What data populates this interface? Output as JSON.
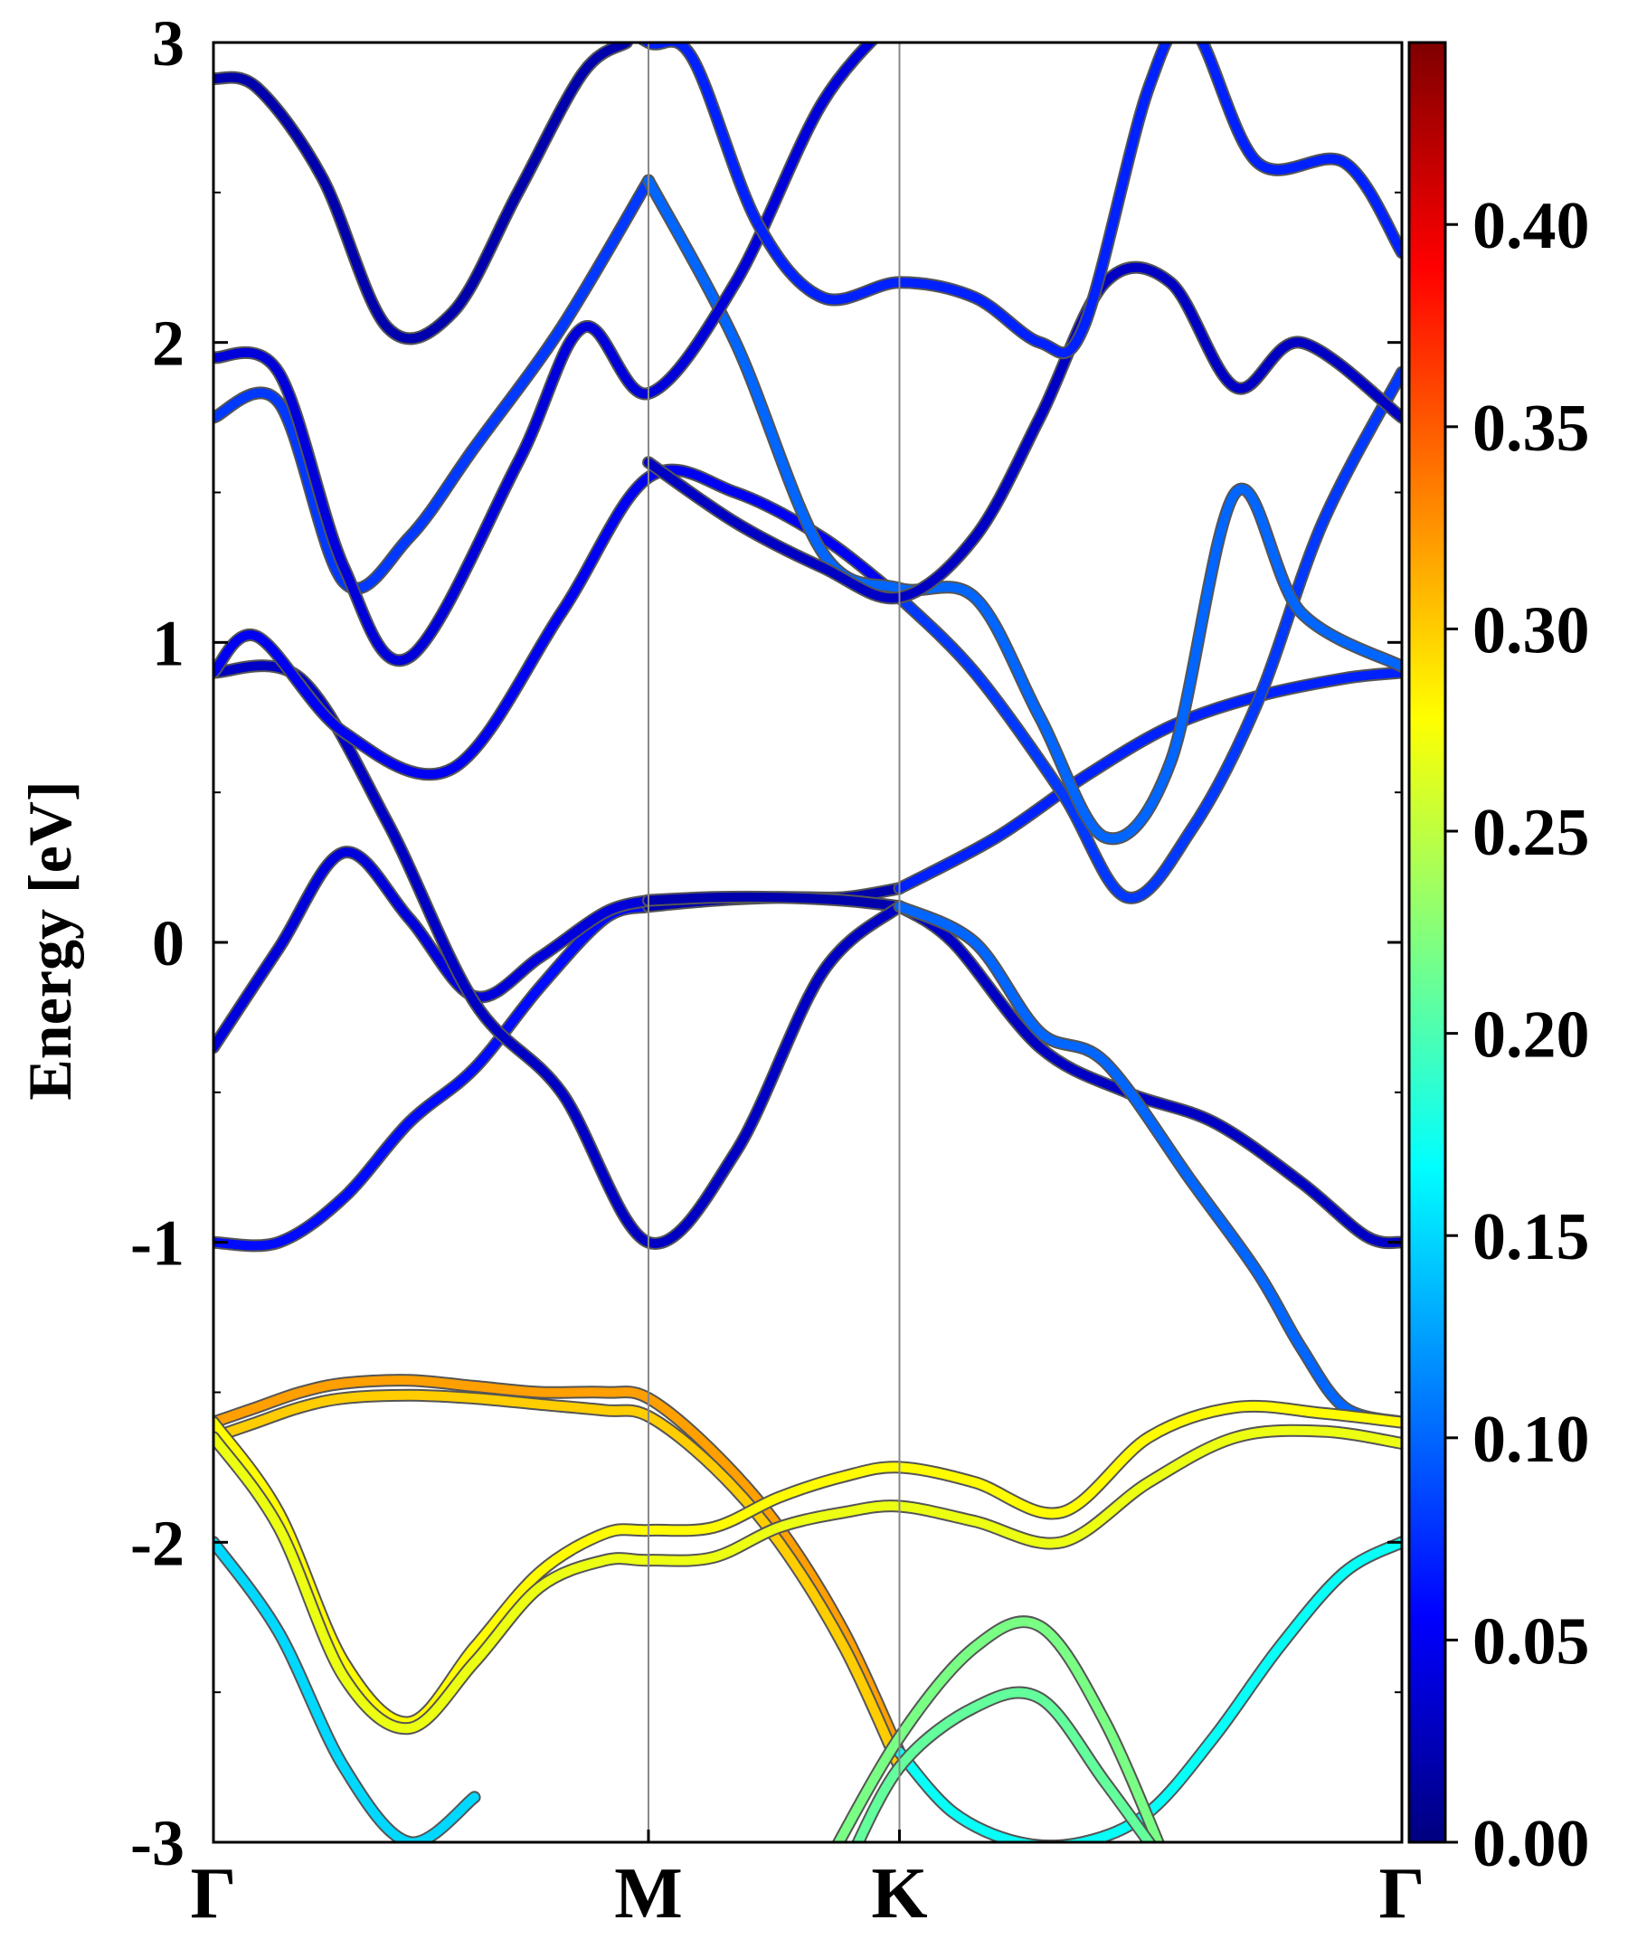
{
  "chart_data": {
    "type": "line",
    "title": "",
    "ylabel": "Energy [eV]",
    "xlabel": "",
    "ylim": [
      -3,
      3
    ],
    "grid": false,
    "legend": "none",
    "x_ticks": [
      "Γ",
      "M",
      "K",
      "Γ"
    ],
    "x_tick_positions": [
      0,
      1,
      1.577,
      2.732
    ],
    "y_ticks": [
      "3",
      "2",
      "1",
      "0",
      "-1",
      "-2",
      "-3"
    ],
    "y_tick_values": [
      3,
      2,
      1,
      0,
      -1,
      -2,
      -3
    ],
    "y_minor_step": 0.5,
    "colorbar": {
      "range": [
        0,
        0.445
      ],
      "ticks": [
        "0.00",
        "0.05",
        "0.10",
        "0.15",
        "0.20",
        "0.25",
        "0.30",
        "0.35",
        "0.40"
      ],
      "tick_values": [
        0.0,
        0.05,
        0.1,
        0.15,
        0.2,
        0.25,
        0.3,
        0.35,
        0.4
      ],
      "colormap": "jet"
    },
    "series": [
      {
        "x": [
          0,
          0.15,
          0.3,
          0.45,
          0.6,
          0.75,
          0.9,
          1.0
        ],
        "y": [
          -1.0,
          -1.0,
          -0.85,
          -0.6,
          -0.42,
          -0.15,
          0.08,
          0.12
        ],
        "c": 0.06
      },
      {
        "x": [
          1.0,
          1.15,
          1.3,
          1.45,
          1.577
        ],
        "y": [
          0.12,
          0.14,
          0.15,
          0.15,
          0.18
        ],
        "c": 0.02
      },
      {
        "x": [
          1.577,
          1.8,
          2.0,
          2.2,
          2.4,
          2.6,
          2.732
        ],
        "y": [
          0.18,
          0.35,
          0.55,
          0.72,
          0.82,
          0.88,
          0.9
        ],
        "c": 0.07
      },
      {
        "x": [
          0,
          0.15,
          0.3,
          0.45,
          0.6,
          0.75,
          0.9,
          1.0
        ],
        "y": [
          -0.35,
          -0.02,
          0.3,
          0.08,
          -0.18,
          -0.05,
          0.1,
          0.14
        ],
        "c": 0.04
      },
      {
        "x": [
          1.0,
          1.15,
          1.3,
          1.45,
          1.577
        ],
        "y": [
          0.14,
          0.15,
          0.15,
          0.14,
          0.12
        ],
        "c": 0.02
      },
      {
        "x": [
          1.577,
          1.7,
          1.9,
          2.1,
          2.3,
          2.5,
          2.65,
          2.732
        ],
        "y": [
          0.12,
          0.0,
          -0.35,
          -0.5,
          -0.6,
          -0.8,
          -0.98,
          -1.0
        ],
        "c": 0.03
      },
      {
        "x": [
          0,
          0.2,
          0.4,
          0.6,
          0.8,
          1.0,
          1.2,
          1.4,
          1.577
        ],
        "y": [
          0.9,
          0.88,
          0.4,
          -0.2,
          -0.5,
          -1.0,
          -0.7,
          -0.1,
          0.12
        ],
        "c": 0.03
      },
      {
        "x": [
          1.577,
          1.75,
          1.9,
          2.05,
          2.25,
          2.4,
          2.5,
          2.6,
          2.732
        ],
        "y": [
          0.12,
          0.0,
          -0.3,
          -0.4,
          -0.8,
          -1.1,
          -1.35,
          -1.55,
          -1.6
        ],
        "c": 0.1
      },
      {
        "x": [
          0,
          0.1,
          0.3,
          0.55,
          0.8,
          1.0,
          1.2,
          1.4,
          1.577
        ],
        "y": [
          0.9,
          1.02,
          0.7,
          0.58,
          1.1,
          1.55,
          1.5,
          1.35,
          1.15
        ],
        "c": 0.05
      },
      {
        "x": [
          1.577,
          1.75,
          1.95,
          2.1,
          2.25,
          2.4,
          2.55,
          2.732
        ],
        "y": [
          1.15,
          0.9,
          0.5,
          0.15,
          0.38,
          0.8,
          1.4,
          1.9
        ],
        "c": 0.08
      },
      {
        "x": [
          0,
          0.15,
          0.3,
          0.45,
          0.6,
          0.8,
          1.0
        ],
        "y": [
          1.75,
          1.8,
          1.2,
          1.35,
          1.65,
          2.05,
          2.54
        ],
        "c": 0.08
      },
      {
        "x": [
          1.0,
          1.2,
          1.4,
          1.577,
          1.75,
          1.9,
          2.05,
          2.2,
          2.35,
          2.5,
          2.732
        ],
        "y": [
          2.54,
          2.0,
          1.3,
          1.18,
          1.15,
          0.75,
          0.35,
          0.6,
          1.5,
          1.1,
          0.92
        ],
        "c": 0.1
      },
      {
        "x": [
          0,
          0.15,
          0.3,
          0.45,
          0.7,
          0.85,
          1.0,
          1.2,
          1.4,
          1.577
        ],
        "y": [
          1.95,
          1.9,
          1.25,
          0.95,
          1.6,
          2.05,
          1.83,
          2.2,
          2.8,
          3.1
        ],
        "c": 0.04
      },
      {
        "x": [
          1.0,
          1.2,
          1.4,
          1.577,
          1.75,
          1.9,
          2.05,
          2.2,
          2.35,
          2.5,
          2.732
        ],
        "y": [
          1.6,
          1.4,
          1.25,
          1.15,
          1.35,
          1.75,
          2.2,
          2.2,
          1.85,
          2.0,
          1.75
        ],
        "c": 0.03
      },
      {
        "x": [
          0.9,
          1.0,
          1.1,
          1.25,
          1.4,
          1.577,
          1.75,
          1.9,
          2.0,
          2.15,
          2.25,
          2.4,
          2.6,
          2.732
        ],
        "y": [
          3.1,
          3.0,
          2.95,
          2.4,
          2.15,
          2.2,
          2.15,
          2.0,
          2.05,
          2.85,
          3.05,
          2.6,
          2.6,
          2.3
        ],
        "c": 0.07
      },
      {
        "x": [
          0,
          0.1,
          0.25,
          0.4,
          0.55,
          0.7,
          0.85,
          0.95
        ],
        "y": [
          2.88,
          2.85,
          2.55,
          2.05,
          2.1,
          2.5,
          2.9,
          3.0
        ],
        "c": 0.02
      },
      {
        "x": [
          0,
          0.1,
          0.2,
          0.3,
          0.45,
          0.6,
          0.75,
          0.9,
          1.0,
          1.15,
          1.3,
          1.45,
          1.577
        ],
        "y": [
          -1.6,
          -1.55,
          -1.5,
          -1.47,
          -1.46,
          -1.48,
          -1.5,
          -1.5,
          -1.52,
          -1.7,
          -1.95,
          -2.3,
          -2.7
        ],
        "c": 0.32
      },
      {
        "x": [
          0,
          0.1,
          0.2,
          0.3,
          0.45,
          0.6,
          0.75,
          0.9,
          1.0,
          1.15,
          1.3,
          1.45,
          1.577
        ],
        "y": [
          -1.65,
          -1.6,
          -1.55,
          -1.52,
          -1.51,
          -1.52,
          -1.54,
          -1.56,
          -1.58,
          -1.75,
          -2.0,
          -2.35,
          -2.75
        ],
        "c": 0.3
      },
      {
        "x": [
          0,
          0.15,
          0.3,
          0.45,
          0.6,
          0.75,
          0.9,
          1.0,
          1.15,
          1.3,
          1.45,
          1.577,
          1.75,
          1.95,
          2.15,
          2.35,
          2.55,
          2.732
        ],
        "y": [
          -1.6,
          -1.9,
          -2.4,
          -2.6,
          -2.35,
          -2.1,
          -1.97,
          -1.96,
          -1.95,
          -1.85,
          -1.78,
          -1.75,
          -1.8,
          -1.9,
          -1.65,
          -1.55,
          -1.57,
          -1.6
        ],
        "c": 0.28
      },
      {
        "x": [
          0,
          0.15,
          0.3,
          0.45,
          0.6,
          0.75,
          0.9,
          1.0,
          1.15,
          1.3,
          1.45,
          1.577,
          1.75,
          1.95,
          2.15,
          2.35,
          2.55,
          2.732
        ],
        "y": [
          -1.65,
          -1.95,
          -2.45,
          -2.62,
          -2.4,
          -2.15,
          -2.06,
          -2.06,
          -2.05,
          -1.95,
          -1.9,
          -1.88,
          -1.93,
          -2.0,
          -1.8,
          -1.65,
          -1.63,
          -1.67
        ],
        "c": 0.27
      },
      {
        "x": [
          0,
          0.15,
          0.3,
          0.45,
          0.6
        ],
        "y": [
          -2.0,
          -2.3,
          -2.75,
          -3.0,
          -2.85
        ],
        "c": 0.15
      },
      {
        "x": [
          1.577,
          1.7,
          1.85,
          2.0,
          2.15,
          2.3,
          2.45,
          2.6,
          2.732
        ],
        "y": [
          -2.7,
          -2.9,
          -3.0,
          -3.0,
          -2.9,
          -2.65,
          -2.35,
          -2.1,
          -2.0
        ],
        "c": 0.17
      },
      {
        "x": [
          1.4,
          1.577,
          1.75,
          1.9,
          2.05,
          2.2
        ],
        "y": [
          -3.1,
          -2.65,
          -2.35,
          -2.28,
          -2.6,
          -3.1
        ],
        "c": 0.22
      },
      {
        "x": [
          1.45,
          1.577,
          1.75,
          1.9,
          2.05,
          2.2
        ],
        "y": [
          -3.1,
          -2.75,
          -2.55,
          -2.52,
          -2.8,
          -3.1
        ],
        "c": 0.21
      }
    ]
  }
}
